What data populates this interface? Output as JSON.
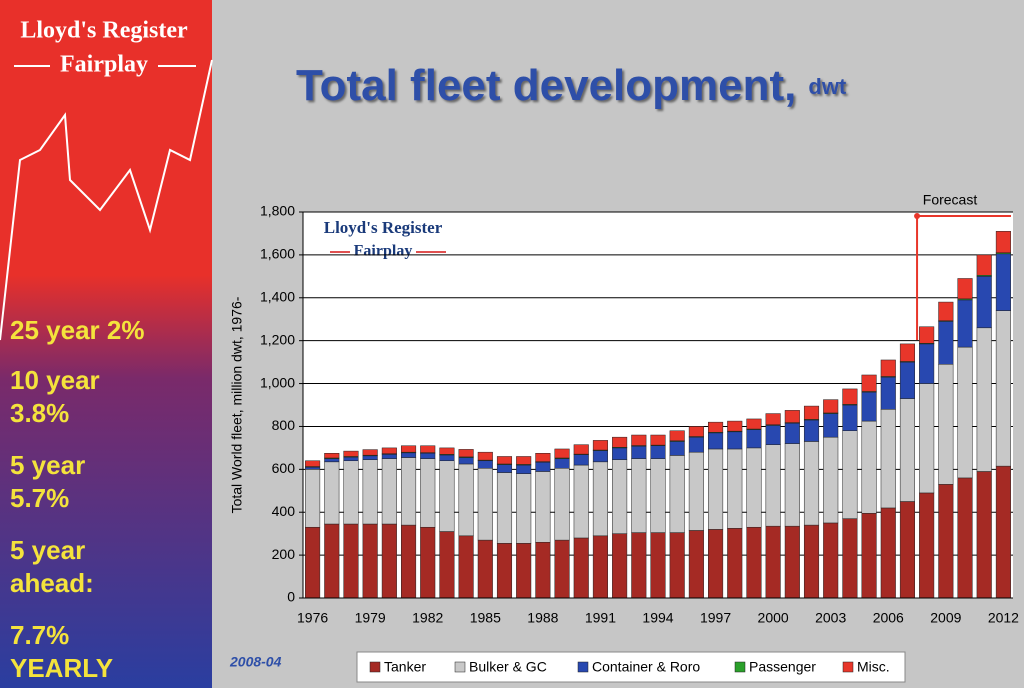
{
  "brand": {
    "line1": "Lloyd's Register",
    "line2": "Fairplay"
  },
  "sidebar": [
    "25 year 2%",
    "10 year",
    "3.8%",
    "5 year",
    "5.7%",
    "5 year",
    "ahead:",
    "7.7%",
    "YEARLY"
  ],
  "footer": "2008-04",
  "chart_data": {
    "type": "stacked_bar",
    "title": "Total fleet development,",
    "title_unit": "dwt",
    "y_label": "Total World fleet, million dwt, 1976-",
    "annotation": "Forecast",
    "logo": {
      "line1": "Lloyd's Register",
      "line2": "Fairplay"
    },
    "categories": [
      "1976",
      null,
      null,
      "1979",
      null,
      null,
      "1982",
      null,
      null,
      "1985",
      null,
      null,
      "1988",
      null,
      null,
      "1991",
      null,
      null,
      "1994",
      null,
      null,
      "1997",
      null,
      null,
      "2000",
      null,
      null,
      "2003",
      null,
      null,
      "2006",
      null,
      null,
      "2009",
      null,
      null,
      "2012"
    ],
    "series": [
      {
        "name": "Tanker",
        "color": "#a52a24",
        "values": [
          330,
          345,
          345,
          345,
          345,
          340,
          330,
          310,
          290,
          270,
          255,
          255,
          260,
          270,
          280,
          290,
          300,
          305,
          305,
          305,
          315,
          320,
          325,
          330,
          335,
          335,
          340,
          350,
          370,
          395,
          420,
          450,
          490,
          530,
          560,
          590,
          615
        ]
      },
      {
        "name": "Bulker & GC",
        "color": "#c8c8c8",
        "values": [
          270,
          290,
          295,
          300,
          305,
          315,
          320,
          330,
          335,
          335,
          330,
          325,
          330,
          335,
          340,
          345,
          345,
          345,
          345,
          360,
          365,
          375,
          370,
          370,
          380,
          385,
          390,
          400,
          410,
          430,
          460,
          480,
          510,
          560,
          610,
          670,
          725
        ]
      },
      {
        "name": "Container & Roro",
        "color": "#2848b0",
        "values": [
          10,
          15,
          17,
          18,
          20,
          22,
          25,
          27,
          30,
          35,
          37,
          40,
          43,
          45,
          48,
          52,
          55,
          58,
          60,
          65,
          70,
          75,
          80,
          85,
          90,
          95,
          100,
          110,
          120,
          135,
          150,
          170,
          185,
          200,
          220,
          240,
          265
        ]
      },
      {
        "name": "Passenger",
        "color": "#2aa02a",
        "values": [
          3,
          3,
          3,
          3,
          3,
          3,
          3,
          3,
          3,
          3,
          3,
          3,
          3,
          3,
          3,
          3,
          3,
          3,
          3,
          3,
          3,
          3,
          3,
          3,
          3,
          3,
          3,
          3,
          3,
          3,
          3,
          3,
          3,
          3,
          5,
          5,
          5
        ]
      },
      {
        "name": "Misc.",
        "color": "#e8362a",
        "values": [
          27,
          22,
          25,
          26,
          27,
          30,
          32,
          30,
          35,
          37,
          35,
          37,
          39,
          42,
          44,
          45,
          47,
          49,
          47,
          47,
          47,
          47,
          47,
          47,
          52,
          57,
          62,
          62,
          72,
          77,
          77,
          82,
          77,
          87,
          95,
          95,
          100
        ]
      }
    ],
    "ylim": [
      0,
      1800
    ],
    "yticks": [
      0,
      200,
      400,
      600,
      800,
      {
        "value": 1000,
        "label": "1,000"
      },
      {
        "value": 1200,
        "label": "1,200"
      },
      {
        "value": 1400,
        "label": "1,400"
      },
      {
        "value": 1600,
        "label": "1,600"
      },
      {
        "value": 1800,
        "label": "1,800"
      }
    ],
    "grid": true
  }
}
